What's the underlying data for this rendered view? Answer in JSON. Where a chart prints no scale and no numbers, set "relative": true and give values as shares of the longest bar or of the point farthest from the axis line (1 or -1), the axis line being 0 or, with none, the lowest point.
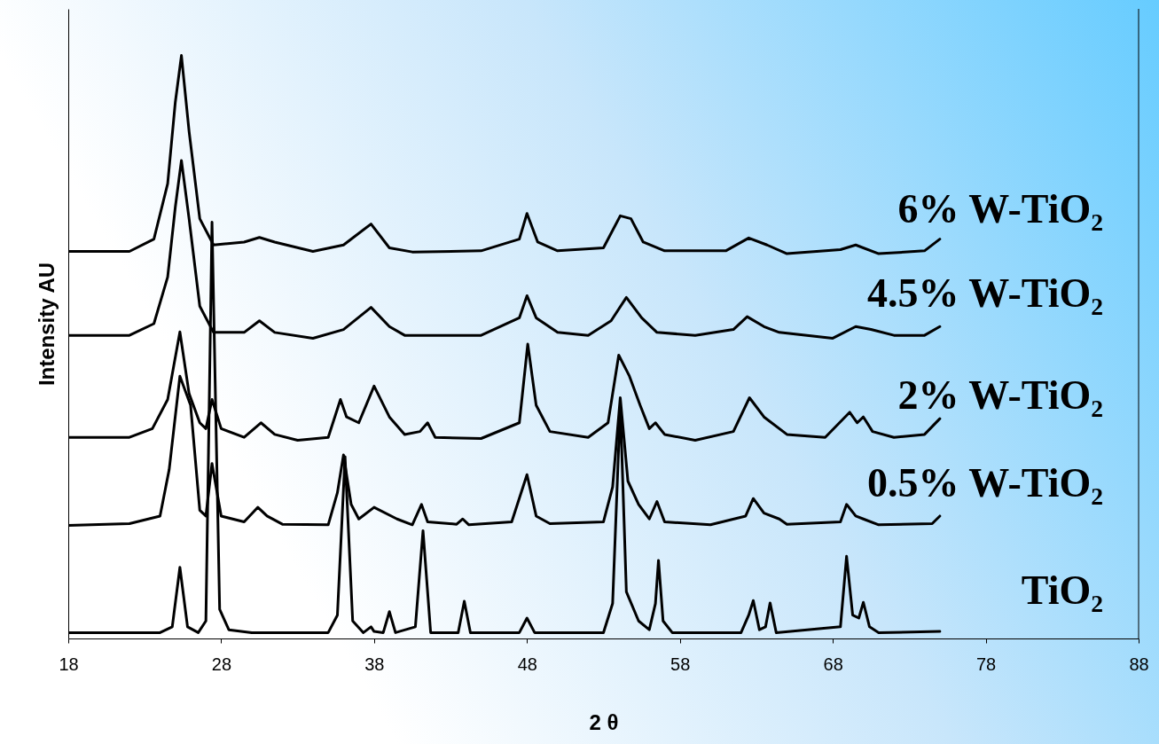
{
  "chart_data": {
    "type": "line",
    "xlabel": "2 θ",
    "ylabel": "Intensity AU",
    "xlim": [
      18,
      88
    ],
    "xticks": [
      18,
      28,
      38,
      48,
      58,
      68,
      78,
      88
    ],
    "relative": true,
    "series": [
      {
        "name": "TiO₂",
        "color": "#000000",
        "x": [
          18,
          24,
          24.8,
          25.3,
          25.8,
          26.5,
          27.0,
          27.4,
          27.9,
          28.5,
          30,
          35,
          35.6,
          36.1,
          36.6,
          37.3,
          37.8,
          38.0,
          38.6,
          39.0,
          39.4,
          40.7,
          41.2,
          41.7,
          43.5,
          43.9,
          44.3,
          47.5,
          48.0,
          48.5,
          53,
          53.6,
          54.1,
          54.5,
          55.3,
          56.0,
          56.4,
          56.6,
          56.9,
          57.5,
          62,
          62.5,
          62.8,
          63.2,
          63.6,
          63.9,
          64.3,
          68.5,
          68.9,
          69.3,
          69.7,
          70.0,
          70.4,
          71,
          75
        ],
        "values": [
          0.01,
          0.01,
          0.02,
          0.122,
          0.02,
          0.01,
          0.03,
          0.714,
          0.05,
          0.015,
          0.01,
          0.01,
          0.04,
          0.312,
          0.03,
          0.01,
          0.02,
          0.012,
          0.01,
          0.046,
          0.01,
          0.02,
          0.185,
          0.01,
          0.01,
          0.064,
          0.01,
          0.01,
          0.035,
          0.01,
          0.01,
          0.06,
          0.4,
          0.08,
          0.03,
          0.015,
          0.06,
          0.134,
          0.03,
          0.01,
          0.01,
          0.04,
          0.065,
          0.015,
          0.02,
          0.061,
          0.01,
          0.02,
          0.141,
          0.04,
          0.035,
          0.062,
          0.02,
          0.01,
          0.012
        ]
      },
      {
        "name": "0.5% W-TiO₂",
        "color": "#000000",
        "x": [
          18,
          22,
          24,
          24.6,
          25.3,
          26.0,
          26.6,
          27.0,
          27.4,
          28.0,
          29.5,
          30.4,
          31,
          32,
          35,
          35.6,
          36.0,
          36.5,
          37,
          38,
          39.5,
          40.5,
          41.1,
          41.5,
          43.4,
          43.8,
          44.2,
          47,
          48,
          48.6,
          49.5,
          53,
          53.6,
          54.1,
          54.6,
          55.3,
          56.0,
          56.5,
          57.0,
          60,
          62.3,
          62.8,
          63.5,
          64.5,
          65,
          68.5,
          68.9,
          69.5,
          70,
          71,
          74.5,
          75
        ],
        "values": [
          0.194,
          0.197,
          0.21,
          0.29,
          0.45,
          0.4,
          0.22,
          0.21,
          0.3,
          0.21,
          0.2,
          0.225,
          0.21,
          0.196,
          0.195,
          0.25,
          0.315,
          0.23,
          0.205,
          0.225,
          0.205,
          0.195,
          0.23,
          0.2,
          0.196,
          0.205,
          0.195,
          0.2,
          0.281,
          0.21,
          0.197,
          0.2,
          0.26,
          0.413,
          0.27,
          0.23,
          0.205,
          0.235,
          0.2,
          0.195,
          0.21,
          0.24,
          0.215,
          0.205,
          0.196,
          0.2,
          0.23,
          0.21,
          0.205,
          0.195,
          0.197,
          0.21
        ]
      },
      {
        "name": "2% W-TiO₂",
        "color": "#000000",
        "x": [
          18,
          22,
          23.5,
          24.5,
          25.3,
          25.9,
          26.6,
          27.0,
          27.4,
          28.0,
          29.5,
          30.6,
          31.5,
          33,
          35,
          35.8,
          36.2,
          37.0,
          38.0,
          39.0,
          40,
          41.0,
          41.5,
          42,
          45,
          47.5,
          48.05,
          48.6,
          49.5,
          52,
          53.3,
          54.0,
          54.7,
          55.4,
          56.0,
          56.4,
          57,
          59,
          61.5,
          62.55,
          63.5,
          65,
          67.5,
          69.1,
          69.6,
          70.0,
          70.6,
          72,
          74,
          75
        ],
        "values": [
          0.345,
          0.345,
          0.36,
          0.41,
          0.526,
          0.42,
          0.37,
          0.36,
          0.41,
          0.36,
          0.345,
          0.37,
          0.35,
          0.34,
          0.345,
          0.41,
          0.38,
          0.37,
          0.433,
          0.38,
          0.35,
          0.355,
          0.37,
          0.345,
          0.343,
          0.37,
          0.505,
          0.4,
          0.355,
          0.345,
          0.37,
          0.486,
          0.45,
          0.4,
          0.36,
          0.37,
          0.35,
          0.34,
          0.355,
          0.413,
          0.38,
          0.35,
          0.345,
          0.388,
          0.37,
          0.38,
          0.355,
          0.345,
          0.35,
          0.377
        ]
      },
      {
        "name": "4.5% W-TiO₂",
        "color": "#000000",
        "x": [
          18,
          22,
          23.6,
          24.5,
          25.0,
          25.4,
          25.9,
          26.6,
          27.5,
          29.5,
          30.5,
          31.5,
          34,
          36,
          37.8,
          39,
          40,
          45,
          47.5,
          48.0,
          48.6,
          50,
          52,
          53.5,
          54.5,
          55.5,
          56.5,
          59,
          61.5,
          62.4,
          63.5,
          64.5,
          68,
          69.5,
          70.5,
          72,
          74,
          75
        ],
        "values": [
          0.52,
          0.52,
          0.54,
          0.62,
          0.74,
          0.82,
          0.72,
          0.57,
          0.525,
          0.525,
          0.545,
          0.525,
          0.515,
          0.53,
          0.568,
          0.535,
          0.52,
          0.52,
          0.55,
          0.588,
          0.55,
          0.525,
          0.52,
          0.545,
          0.585,
          0.55,
          0.525,
          0.52,
          0.53,
          0.552,
          0.535,
          0.525,
          0.515,
          0.535,
          0.53,
          0.52,
          0.52,
          0.535
        ]
      },
      {
        "name": "6% W-TiO₂",
        "color": "#000000",
        "x": [
          18,
          22,
          23.6,
          24.5,
          25.0,
          25.4,
          25.9,
          26.6,
          27.5,
          29.5,
          30.5,
          31.5,
          34,
          36,
          37.8,
          39,
          40.5,
          45,
          47.5,
          48.0,
          48.7,
          50,
          53,
          54.1,
          54.8,
          55.6,
          57,
          61,
          62.5,
          63.7,
          65,
          68.5,
          69.5,
          71,
          74,
          75
        ],
        "values": [
          0.664,
          0.664,
          0.685,
          0.78,
          0.92,
          1,
          0.87,
          0.72,
          0.675,
          0.68,
          0.688,
          0.68,
          0.664,
          0.675,
          0.711,
          0.67,
          0.663,
          0.665,
          0.685,
          0.729,
          0.68,
          0.665,
          0.67,
          0.725,
          0.72,
          0.68,
          0.665,
          0.665,
          0.687,
          0.675,
          0.66,
          0.667,
          0.675,
          0.66,
          0.665,
          0.685
        ]
      }
    ]
  }
}
